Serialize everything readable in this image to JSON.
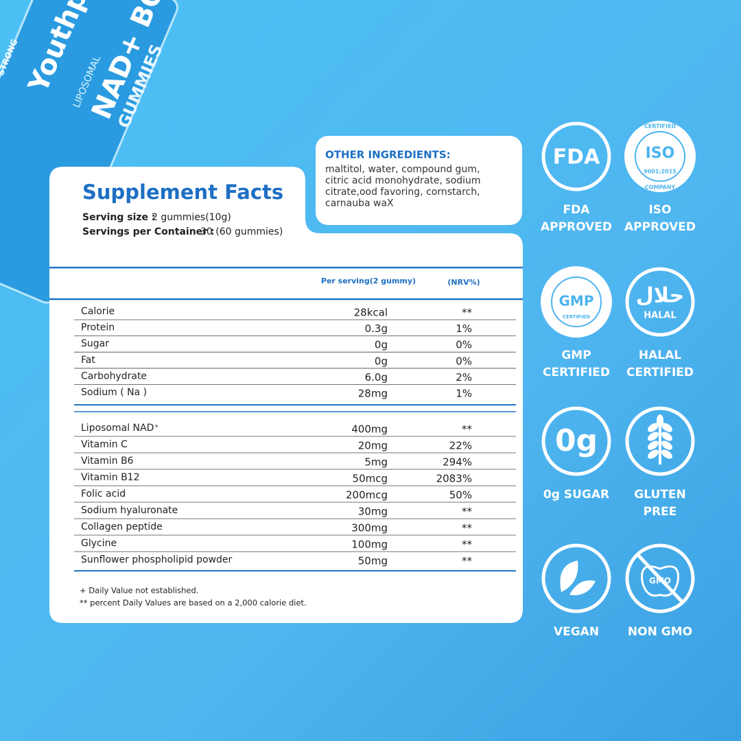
{
  "package": {
    "brand": "Youthpro",
    "line1": "LIPOSOMAL",
    "line2": "NAD+ BOOST",
    "line3": "GUMMIES",
    "line4": "STRONG"
  },
  "supplement_facts": {
    "title": "Supplement Facts",
    "serving_size_label": "Serving size :",
    "serving_size": "2 gummies(10g)",
    "servings_label": "Servings per Container :",
    "servings": "30 (60 gummies)"
  },
  "other_ingredients": {
    "title": "OTHER INGREDIENTS:",
    "lines": [
      "maltitol, water, compound gum,",
      "citric acid monohydrate, sodium",
      "citrate,ood favoring, cornstarch,",
      "carnauba waX"
    ]
  },
  "table": {
    "headers": [
      "Per serving(2 gummy)",
      "(NRV%)"
    ],
    "groups": [
      [
        [
          "Calorie",
          "28kcal",
          "**"
        ],
        [
          "Protein",
          "0.3g",
          "1%"
        ],
        [
          "Sugar",
          "0g",
          "0%"
        ],
        [
          "Fat",
          "0g",
          "0%"
        ],
        [
          "Carbohydrate",
          "6.0g",
          "2%"
        ],
        [
          "Sodium ( Na )",
          "28mg",
          "1%"
        ]
      ],
      [
        [
          "Liposomal NAD⁺",
          "400mg",
          "**"
        ],
        [
          "Vitamin C",
          "20mg",
          "22%"
        ],
        [
          "Vitamin B6",
          "5mg",
          "294%"
        ],
        [
          "Vitamin B12",
          "50mcg",
          "2083%"
        ],
        [
          "Folic acid",
          "200mcg",
          "50%"
        ],
        [
          "Sodium hyaluronate",
          "30mg",
          "**"
        ],
        [
          "Collagen peptide",
          "300mg",
          "**"
        ],
        [
          "Glycine",
          "100mg",
          "**"
        ],
        [
          "Sunflower phospholipid powder",
          "50mg",
          "**"
        ]
      ]
    ]
  },
  "notes": [
    "+ Daily Value not established.",
    "** percent Daily Values are based on a 2,000 calorie diet."
  ],
  "badges": [
    {
      "icon": "fda",
      "icon_text": [
        "FDA"
      ],
      "label": [
        "FDA",
        "APPROVED"
      ]
    },
    {
      "icon": "iso",
      "icon_text": [
        "CERTIFIED",
        "ISO",
        "9001:2015",
        "COMPANY"
      ],
      "label": [
        "ISO",
        "APPROVED"
      ]
    },
    {
      "icon": "gmp",
      "icon_text": [
        "GMP",
        "CERTIFIED"
      ],
      "label": [
        "GMP",
        "CERTIFIED"
      ]
    },
    {
      "icon": "halal",
      "icon_text": [
        "حلال",
        "HALAL"
      ],
      "label": [
        "HALAL",
        "CERTIFIED"
      ]
    },
    {
      "icon": "sugar",
      "icon_text": [
        "0g"
      ],
      "label": [
        "0g SUGAR"
      ]
    },
    {
      "icon": "gluten",
      "label": [
        "GLUTEN",
        "PREE"
      ]
    },
    {
      "icon": "vegan",
      "label": [
        "VEGAN"
      ]
    },
    {
      "icon": "gmo",
      "icon_text": [
        "GMO"
      ],
      "label": [
        "NON GMO"
      ]
    }
  ]
}
